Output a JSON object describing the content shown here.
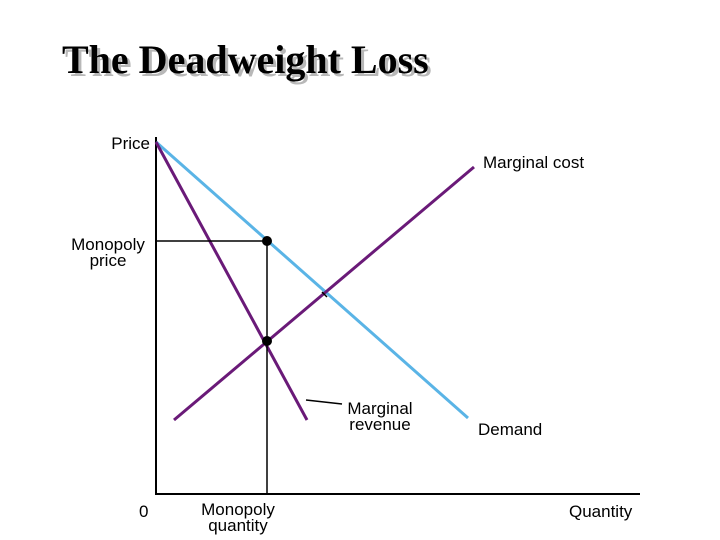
{
  "title": "The Deadweight Loss",
  "labels": {
    "price_axis": "Price",
    "quantity_axis": "Quantity",
    "origin": "0",
    "marginal_cost": "Marginal cost",
    "demand": "Demand",
    "marginal_revenue_line1": "Marginal",
    "marginal_revenue_line2": "revenue",
    "monopoly_price_line1": "Monopoly",
    "monopoly_price_line2": "price",
    "monopoly_quantity_line1": "Monopoly",
    "monopoly_quantity_line2": "quantity"
  },
  "colors": {
    "demand": "#5ab4e6",
    "marginal_cost": "#6a1a78",
    "marginal_revenue": "#6a1a78",
    "axes": "#000000"
  }
}
